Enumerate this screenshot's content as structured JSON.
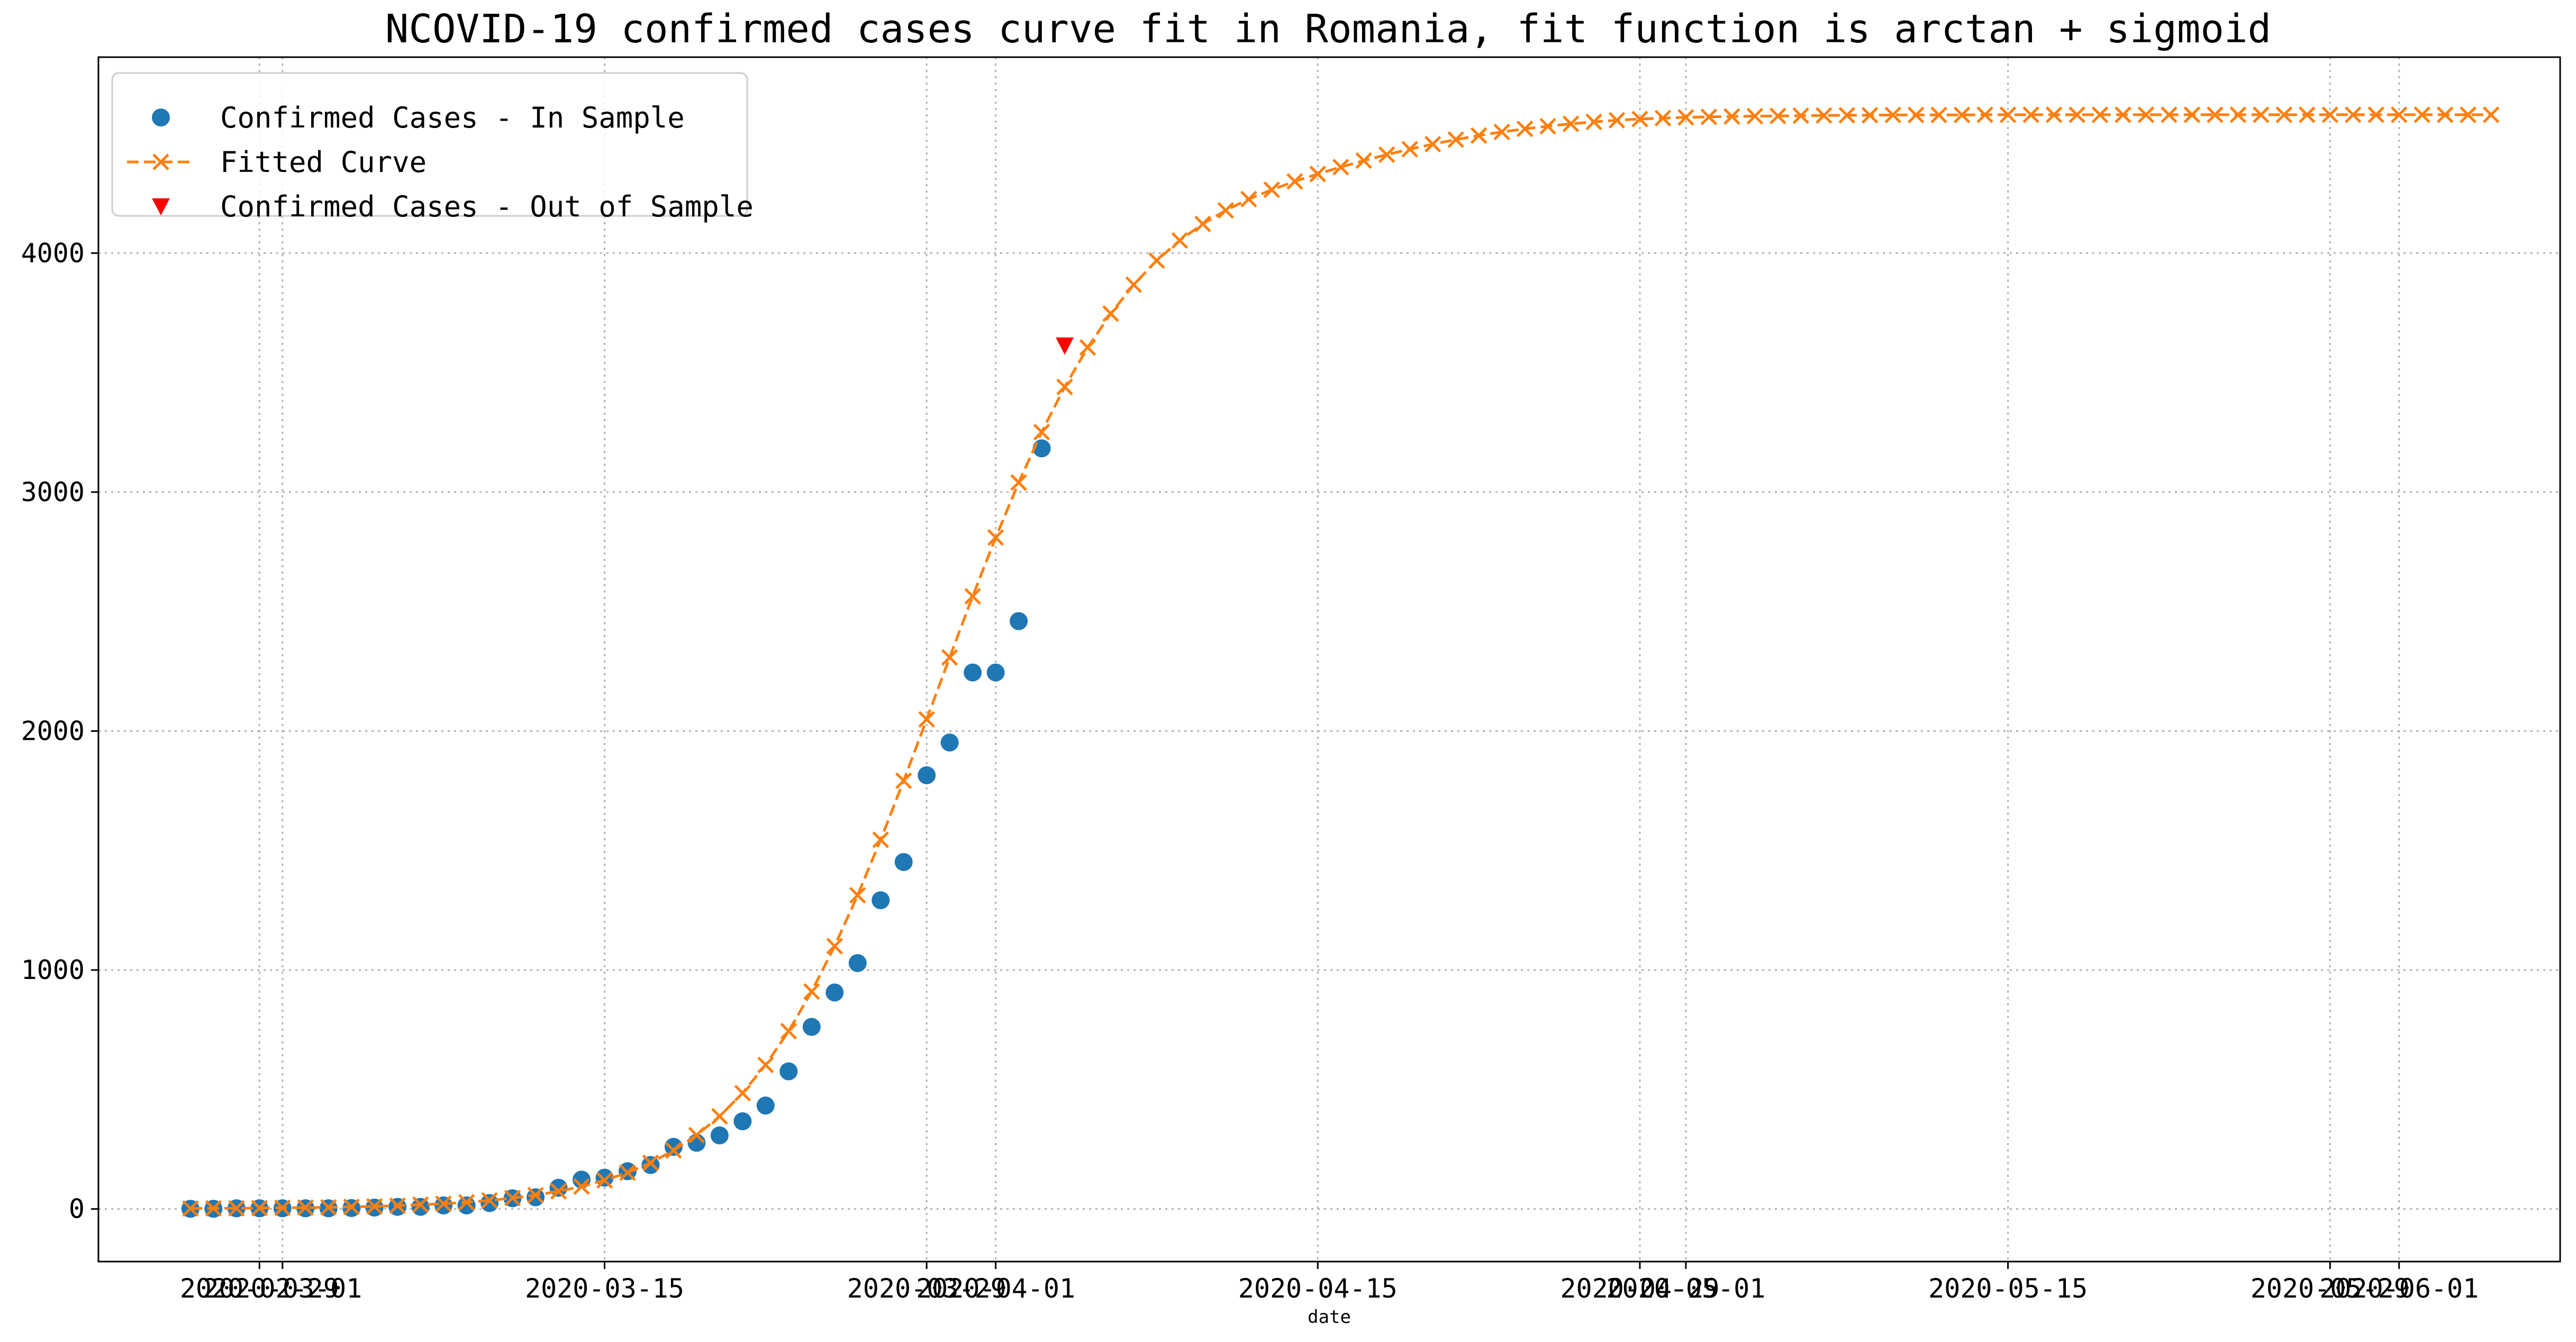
{
  "chart_data": {
    "type": "line",
    "title": "NCOVID-19 confirmed cases curve fit in Romania, fit function is arctan + sigmoid",
    "xlabel": "date",
    "ylabel": "",
    "x_axis_type": "date",
    "xlim": [
      "2020-02-22",
      "2020-06-08"
    ],
    "ylim": [
      -220,
      4820
    ],
    "y_ticks": [
      0,
      1000,
      2000,
      3000,
      4000
    ],
    "x_ticks": [
      {
        "date": "2020-02-29",
        "label": "2020-02-29"
      },
      {
        "date": "2020-03-01",
        "label": "2020-03-01"
      },
      {
        "date": "2020-03-15",
        "label": "2020-03-15"
      },
      {
        "date": "2020-03-29",
        "label": "2020-03-29"
      },
      {
        "date": "2020-04-01",
        "label": "2020-04-01"
      },
      {
        "date": "2020-04-15",
        "label": "2020-04-15"
      },
      {
        "date": "2020-04-29",
        "label": "2020-04-29"
      },
      {
        "date": "2020-05-01",
        "label": "2020-05-01"
      },
      {
        "date": "2020-05-15",
        "label": "2020-05-15"
      },
      {
        "date": "2020-05-29",
        "label": "2020-05-29"
      },
      {
        "date": "2020-06-01",
        "label": "2020-06-01"
      }
    ],
    "grid": true,
    "legend_position": "top-left",
    "series": [
      {
        "name": "Confirmed Cases - In Sample",
        "kind": "scatter",
        "marker": "circle",
        "color": "#1f77b4",
        "points": [
          {
            "x": "2020-02-26",
            "y": 1
          },
          {
            "x": "2020-02-27",
            "y": 1
          },
          {
            "x": "2020-02-28",
            "y": 3
          },
          {
            "x": "2020-02-29",
            "y": 3
          },
          {
            "x": "2020-03-01",
            "y": 3
          },
          {
            "x": "2020-03-02",
            "y": 3
          },
          {
            "x": "2020-03-03",
            "y": 3
          },
          {
            "x": "2020-03-04",
            "y": 4
          },
          {
            "x": "2020-03-05",
            "y": 6
          },
          {
            "x": "2020-03-06",
            "y": 9
          },
          {
            "x": "2020-03-07",
            "y": 9
          },
          {
            "x": "2020-03-08",
            "y": 15
          },
          {
            "x": "2020-03-09",
            "y": 15
          },
          {
            "x": "2020-03-10",
            "y": 25
          },
          {
            "x": "2020-03-11",
            "y": 45
          },
          {
            "x": "2020-03-12",
            "y": 49
          },
          {
            "x": "2020-03-13",
            "y": 89
          },
          {
            "x": "2020-03-14",
            "y": 123
          },
          {
            "x": "2020-03-15",
            "y": 131
          },
          {
            "x": "2020-03-16",
            "y": 158
          },
          {
            "x": "2020-03-17",
            "y": 184
          },
          {
            "x": "2020-03-18",
            "y": 260
          },
          {
            "x": "2020-03-19",
            "y": 277
          },
          {
            "x": "2020-03-20",
            "y": 308
          },
          {
            "x": "2020-03-21",
            "y": 367
          },
          {
            "x": "2020-03-22",
            "y": 433
          },
          {
            "x": "2020-03-23",
            "y": 576
          },
          {
            "x": "2020-03-24",
            "y": 762
          },
          {
            "x": "2020-03-25",
            "y": 906
          },
          {
            "x": "2020-03-26",
            "y": 1029
          },
          {
            "x": "2020-03-27",
            "y": 1292
          },
          {
            "x": "2020-03-28",
            "y": 1452
          },
          {
            "x": "2020-03-29",
            "y": 1815
          },
          {
            "x": "2020-03-30",
            "y": 1952
          },
          {
            "x": "2020-03-31",
            "y": 2245
          },
          {
            "x": "2020-04-01",
            "y": 2245
          },
          {
            "x": "2020-04-02",
            "y": 2460
          },
          {
            "x": "2020-04-03",
            "y": 3183
          }
        ]
      },
      {
        "name": "Fitted Curve",
        "kind": "line",
        "marker": "x",
        "line_style": "dashed",
        "color": "#ff7f0e",
        "points": [
          {
            "x": "2020-02-26",
            "y": 2
          },
          {
            "x": "2020-02-27",
            "y": 3
          },
          {
            "x": "2020-02-28",
            "y": 3
          },
          {
            "x": "2020-02-29",
            "y": 4
          },
          {
            "x": "2020-03-01",
            "y": 5
          },
          {
            "x": "2020-03-02",
            "y": 6
          },
          {
            "x": "2020-03-03",
            "y": 7
          },
          {
            "x": "2020-03-04",
            "y": 9
          },
          {
            "x": "2020-03-05",
            "y": 11
          },
          {
            "x": "2020-03-06",
            "y": 14
          },
          {
            "x": "2020-03-07",
            "y": 18
          },
          {
            "x": "2020-03-08",
            "y": 22
          },
          {
            "x": "2020-03-09",
            "y": 28
          },
          {
            "x": "2020-03-10",
            "y": 36
          },
          {
            "x": "2020-03-11",
            "y": 46
          },
          {
            "x": "2020-03-12",
            "y": 58
          },
          {
            "x": "2020-03-13",
            "y": 74
          },
          {
            "x": "2020-03-14",
            "y": 94
          },
          {
            "x": "2020-03-15",
            "y": 120
          },
          {
            "x": "2020-03-16",
            "y": 152
          },
          {
            "x": "2020-03-17",
            "y": 193
          },
          {
            "x": "2020-03-18",
            "y": 245
          },
          {
            "x": "2020-03-19",
            "y": 309
          },
          {
            "x": "2020-03-20",
            "y": 388
          },
          {
            "x": "2020-03-21",
            "y": 485
          },
          {
            "x": "2020-03-22",
            "y": 603
          },
          {
            "x": "2020-03-23",
            "y": 744
          },
          {
            "x": "2020-03-24",
            "y": 910
          },
          {
            "x": "2020-03-25",
            "y": 1100
          },
          {
            "x": "2020-03-26",
            "y": 1313
          },
          {
            "x": "2020-03-27",
            "y": 1545
          },
          {
            "x": "2020-03-28",
            "y": 1792
          },
          {
            "x": "2020-03-29",
            "y": 2049
          },
          {
            "x": "2020-03-30",
            "y": 2308
          },
          {
            "x": "2020-03-31",
            "y": 2564
          },
          {
            "x": "2020-04-01",
            "y": 2810
          },
          {
            "x": "2020-04-02",
            "y": 3040
          },
          {
            "x": "2020-04-03",
            "y": 3251
          },
          {
            "x": "2020-04-04",
            "y": 3440
          },
          {
            "x": "2020-04-05",
            "y": 3605
          },
          {
            "x": "2020-04-06",
            "y": 3747
          },
          {
            "x": "2020-04-07",
            "y": 3868
          },
          {
            "x": "2020-04-08",
            "y": 3969
          },
          {
            "x": "2020-04-09",
            "y": 4053
          },
          {
            "x": "2020-04-10",
            "y": 4122
          },
          {
            "x": "2020-04-11",
            "y": 4179
          },
          {
            "x": "2020-04-12",
            "y": 4226
          },
          {
            "x": "2020-04-13",
            "y": 4265
          },
          {
            "x": "2020-04-14",
            "y": 4300
          },
          {
            "x": "2020-04-15",
            "y": 4331
          },
          {
            "x": "2020-04-16",
            "y": 4360
          },
          {
            "x": "2020-04-17",
            "y": 4387
          },
          {
            "x": "2020-04-18",
            "y": 4412
          },
          {
            "x": "2020-04-19",
            "y": 4435
          },
          {
            "x": "2020-04-20",
            "y": 4456
          },
          {
            "x": "2020-04-21",
            "y": 4475
          },
          {
            "x": "2020-04-22",
            "y": 4492
          },
          {
            "x": "2020-04-23",
            "y": 4507
          },
          {
            "x": "2020-04-24",
            "y": 4520
          },
          {
            "x": "2020-04-25",
            "y": 4531
          },
          {
            "x": "2020-04-26",
            "y": 4541
          },
          {
            "x": "2020-04-27",
            "y": 4549
          },
          {
            "x": "2020-04-28",
            "y": 4556
          },
          {
            "x": "2020-04-29",
            "y": 4561
          },
          {
            "x": "2020-04-30",
            "y": 4565
          },
          {
            "x": "2020-05-01",
            "y": 4568
          },
          {
            "x": "2020-05-02",
            "y": 4570
          },
          {
            "x": "2020-05-03",
            "y": 4572
          },
          {
            "x": "2020-05-04",
            "y": 4573
          },
          {
            "x": "2020-05-05",
            "y": 4574
          },
          {
            "x": "2020-05-06",
            "y": 4575
          },
          {
            "x": "2020-05-07",
            "y": 4576
          },
          {
            "x": "2020-05-08",
            "y": 4577
          },
          {
            "x": "2020-05-09",
            "y": 4577
          },
          {
            "x": "2020-05-10",
            "y": 4578
          },
          {
            "x": "2020-05-11",
            "y": 4578
          },
          {
            "x": "2020-05-12",
            "y": 4578
          },
          {
            "x": "2020-05-13",
            "y": 4578
          },
          {
            "x": "2020-05-14",
            "y": 4579
          },
          {
            "x": "2020-05-15",
            "y": 4579
          },
          {
            "x": "2020-05-16",
            "y": 4579
          },
          {
            "x": "2020-05-17",
            "y": 4579
          },
          {
            "x": "2020-05-18",
            "y": 4579
          },
          {
            "x": "2020-05-19",
            "y": 4579
          },
          {
            "x": "2020-05-20",
            "y": 4579
          },
          {
            "x": "2020-05-21",
            "y": 4579
          },
          {
            "x": "2020-05-22",
            "y": 4579
          },
          {
            "x": "2020-05-23",
            "y": 4579
          },
          {
            "x": "2020-05-24",
            "y": 4579
          },
          {
            "x": "2020-05-25",
            "y": 4579
          },
          {
            "x": "2020-05-26",
            "y": 4579
          },
          {
            "x": "2020-05-27",
            "y": 4579
          },
          {
            "x": "2020-05-28",
            "y": 4579
          },
          {
            "x": "2020-05-29",
            "y": 4579
          },
          {
            "x": "2020-05-30",
            "y": 4579
          },
          {
            "x": "2020-05-31",
            "y": 4579
          },
          {
            "x": "2020-06-01",
            "y": 4579
          },
          {
            "x": "2020-06-02",
            "y": 4579
          },
          {
            "x": "2020-06-03",
            "y": 4579
          },
          {
            "x": "2020-06-04",
            "y": 4579
          },
          {
            "x": "2020-06-05",
            "y": 4579
          }
        ]
      },
      {
        "name": "Confirmed Cases - Out of Sample",
        "kind": "scatter",
        "marker": "triangle-down",
        "color": "#ff0000",
        "points": [
          {
            "x": "2020-04-04",
            "y": 3613
          }
        ]
      }
    ]
  }
}
